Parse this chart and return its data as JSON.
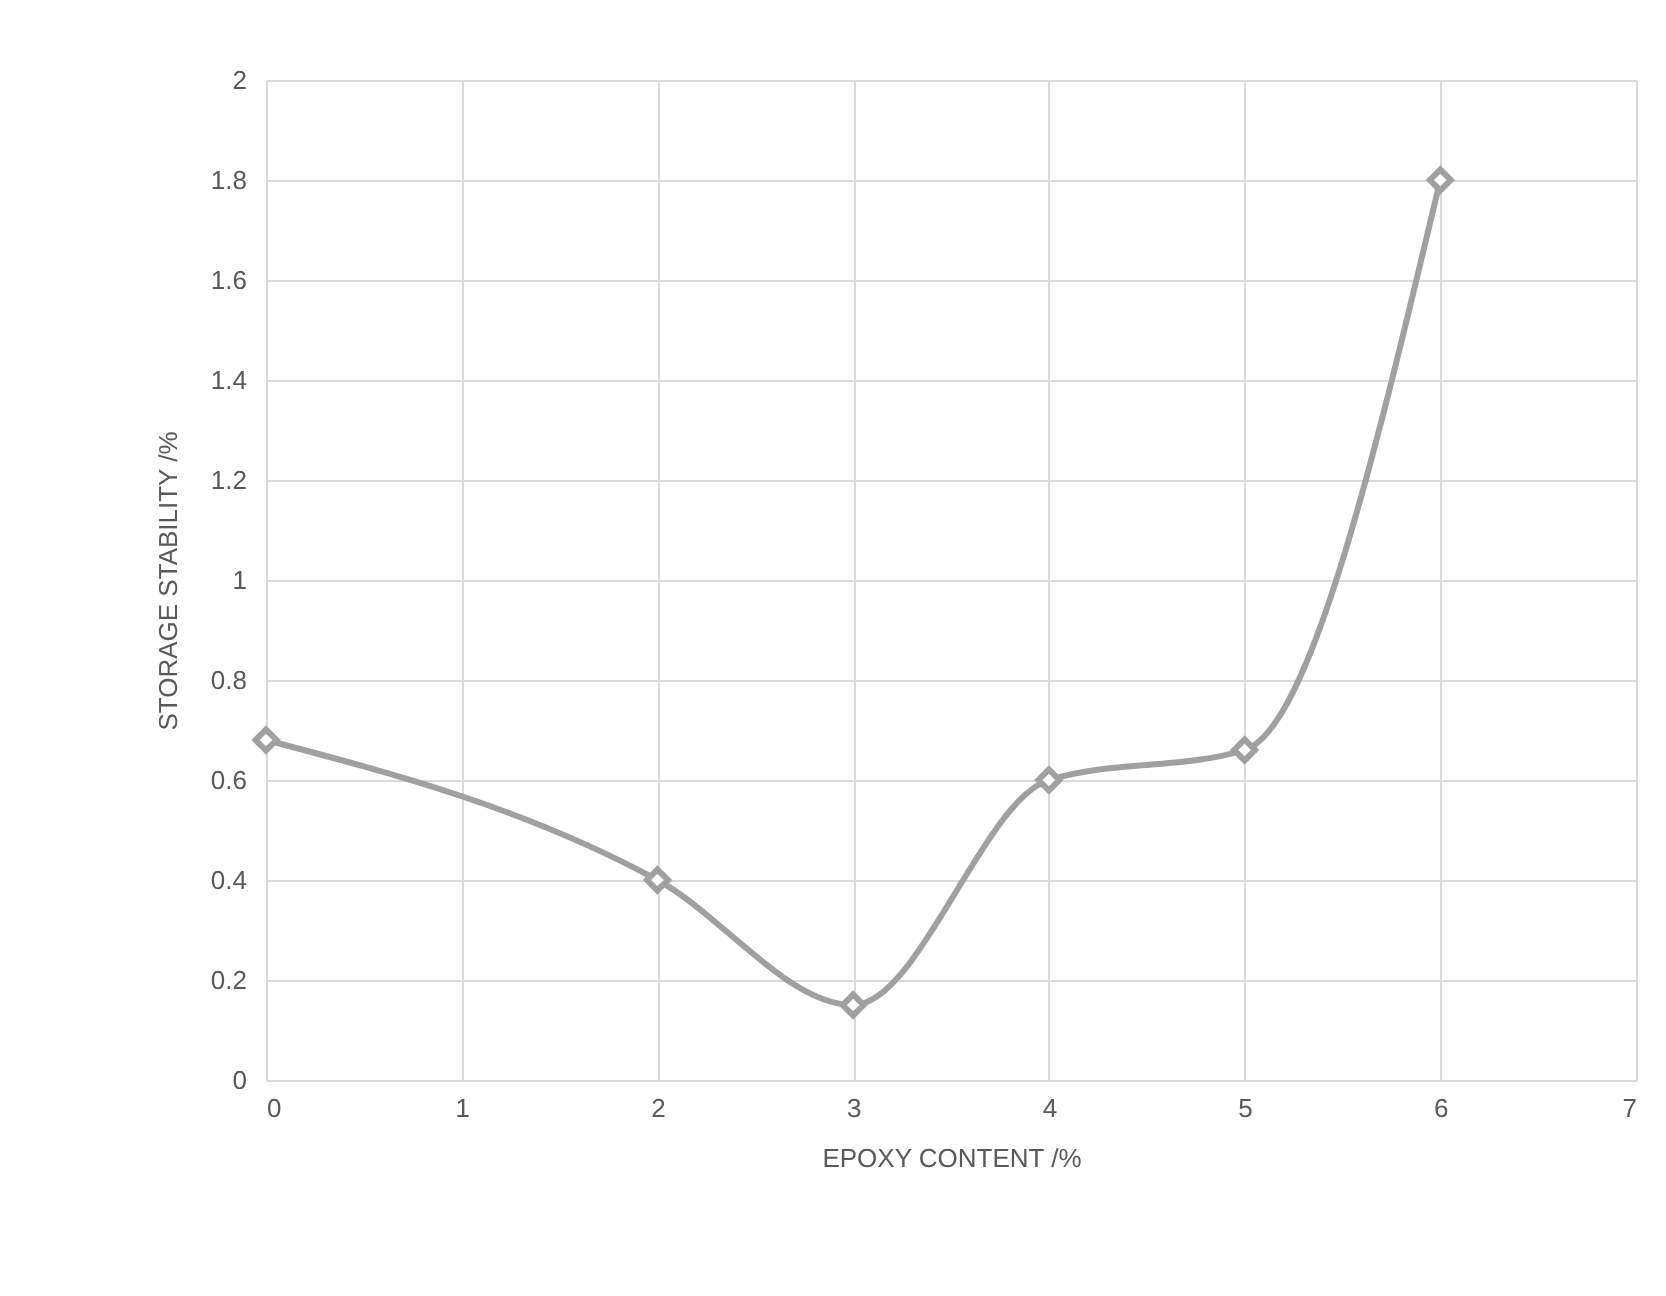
{
  "chart_data": {
    "type": "line",
    "xlabel": "EPOXY CONTENT /%",
    "ylabel": "STORAGE STABILITY /%",
    "x": [
      0,
      2,
      3,
      4,
      5,
      6
    ],
    "series": [
      {
        "color": "#a0a0a0",
        "values": [
          0.68,
          0.4,
          0.15,
          0.6,
          0.66,
          1.8
        ]
      }
    ],
    "xlim": [
      0,
      7
    ],
    "xticks": [
      0,
      1,
      2,
      3,
      4,
      5,
      6,
      7
    ],
    "ylim": [
      0,
      2
    ],
    "yticks": [
      0,
      0.2,
      0.4,
      0.6,
      0.8,
      1,
      1.2,
      1.4,
      1.6,
      1.8,
      2
    ],
    "grid": true,
    "marker": "diamond",
    "line_style": "solid"
  }
}
